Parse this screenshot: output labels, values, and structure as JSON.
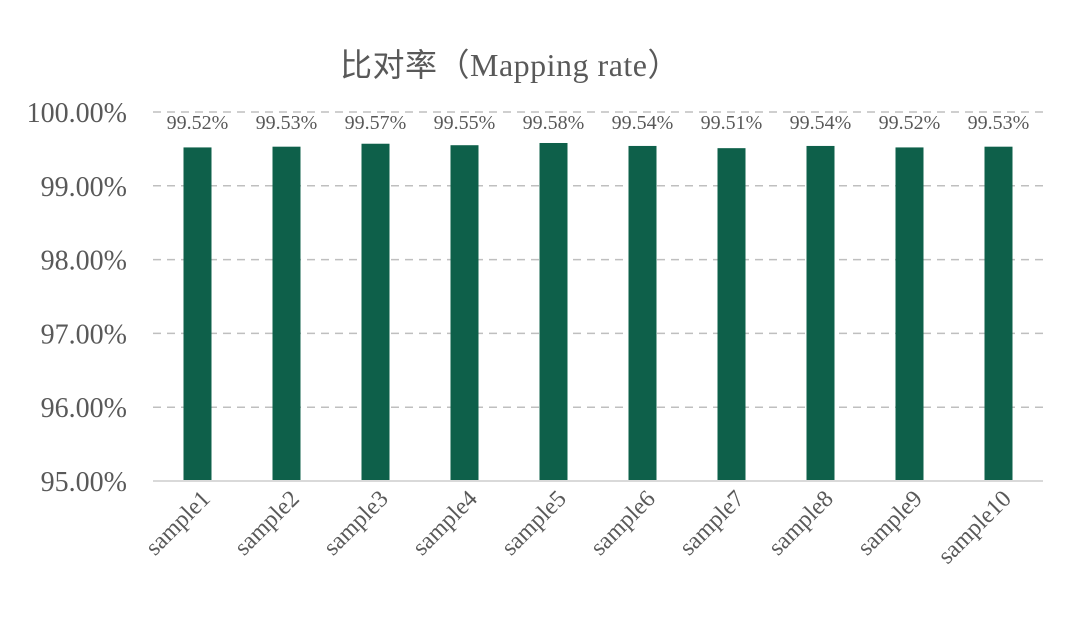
{
  "chart_data": {
    "type": "bar",
    "title": "比对率（Mapping rate）",
    "xlabel": "",
    "ylabel": "",
    "categories": [
      "sample1",
      "sample2",
      "sample3",
      "sample4",
      "sample5",
      "sample6",
      "sample7",
      "sample8",
      "sample9",
      "sample10"
    ],
    "values": [
      99.52,
      99.53,
      99.57,
      99.55,
      99.58,
      99.54,
      99.51,
      99.54,
      99.52,
      99.53
    ],
    "data_labels": [
      "99.52%",
      "99.53%",
      "99.57%",
      "99.55%",
      "99.58%",
      "99.54%",
      "99.51%",
      "99.54%",
      "99.52%",
      "99.53%"
    ],
    "ylim": [
      95,
      100
    ],
    "yticks": [
      95,
      96,
      97,
      98,
      99,
      100
    ],
    "ytick_labels": [
      "95.00%",
      "96.00%",
      "97.00%",
      "98.00%",
      "99.00%",
      "100.00%"
    ],
    "grid": true,
    "legend": "none",
    "colors": {
      "bar": "#0e604a",
      "grid": "#bfbfbf",
      "axis": "#d9d9d9",
      "text": "#595959"
    }
  }
}
